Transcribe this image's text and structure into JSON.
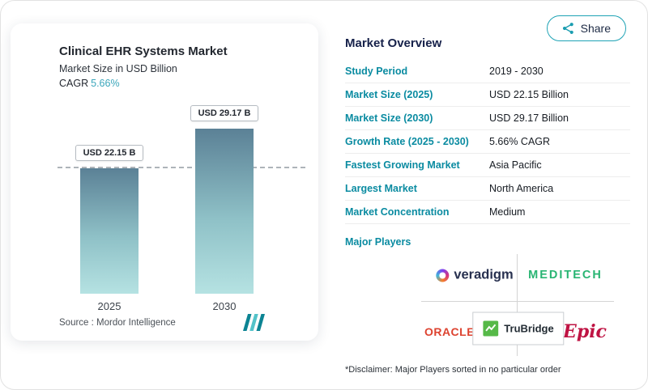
{
  "share": {
    "label": "Share"
  },
  "chart_card": {
    "title": "Clinical EHR Systems Market",
    "subtitle": "Market Size in USD Billion",
    "cagr_label": "CAGR",
    "cagr_value": "5.66%",
    "source": "Source :  Mordor Intelligence"
  },
  "chart_data": {
    "type": "bar",
    "title": "Clinical EHR Systems Market",
    "ylabel": "Market Size in USD Billion",
    "categories": [
      "2025",
      "2030"
    ],
    "values": [
      22.15,
      29.17
    ],
    "bar_labels": [
      "USD 22.15 B",
      "USD 29.17 B"
    ],
    "ylim": [
      0,
      35
    ],
    "reference_line_y": 22.15,
    "cagr_pct": 5.66,
    "grid": false,
    "legend": false,
    "bar_gradient": [
      "#5b8196",
      "#b5e2e2"
    ]
  },
  "overview": {
    "title": "Market Overview",
    "rows": [
      {
        "label": "Study Period",
        "value": "2019 - 2030"
      },
      {
        "label": "Market Size (2025)",
        "value": "USD 22.15 Billion"
      },
      {
        "label": "Market Size (2030)",
        "value": "USD 29.17 Billion"
      },
      {
        "label": "Growth Rate (2025 - 2030)",
        "value": "5.66% CAGR"
      },
      {
        "label": "Fastest Growing Market",
        "value": "Asia Pacific"
      },
      {
        "label": "Largest Market",
        "value": "North America"
      },
      {
        "label": "Market Concentration",
        "value": "Medium"
      }
    ],
    "major_players_label": "Major Players",
    "players": [
      {
        "name": "veradigm"
      },
      {
        "name": "MEDITECH"
      },
      {
        "name": "ORACLE"
      },
      {
        "name": "TruBridge"
      },
      {
        "name": "Epic"
      }
    ],
    "disclaimer": "*Disclaimer: Major Players sorted in no particular order"
  },
  "colors": {
    "accent_teal": "#0a8ba1",
    "navy": "#16214a",
    "bar_top": "#5b8196",
    "bar_bottom": "#b5e2e2",
    "meditech_green": "#29b573",
    "oracle_red": "#dd4330",
    "epic_red": "#bf1343",
    "trubridge_green": "#56b948"
  }
}
